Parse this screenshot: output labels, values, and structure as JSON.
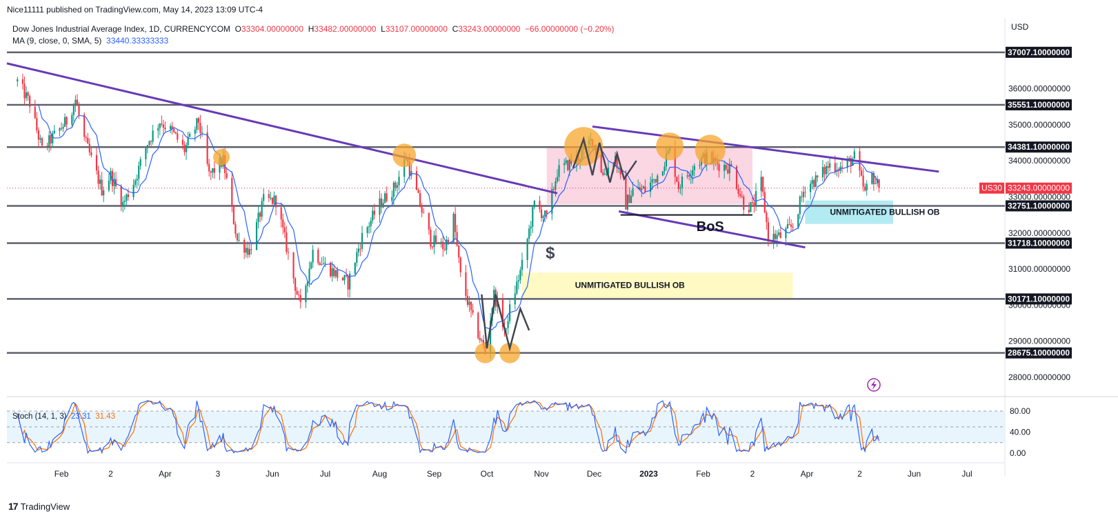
{
  "publisher_line": "Nice11111 published on TradingView.com, May 14, 2023 13:09 UTC-4",
  "legend": {
    "symbol": "Dow Jones Industrial Average Index, 1D, CURRENCYCOM",
    "o_label": "O",
    "o": "33304.00000000",
    "h_label": "H",
    "h": "33482.00000000",
    "l_label": "L",
    "l": "33107.00000000",
    "c_label": "C",
    "c": "33243.00000000",
    "change": "−66.00000000 (−0.20%)",
    "ma_label": "MA (9, close, 0, SMA, 5)",
    "ma_value": "33440.33333333"
  },
  "stoch_legend": {
    "label": "Stoch (14, 1, 3)",
    "k": "23.31",
    "d": "31.43"
  },
  "currency": "USD",
  "footer": "TradingView",
  "colors": {
    "up": "#089981",
    "down": "#f23645",
    "ma": "#2962ff",
    "trendline": "#673ab7",
    "level": "#5d606b",
    "circle": "#f7a52c"
  },
  "chart_data": [
    {
      "type": "candlestick",
      "title": "",
      "ylim": [
        27400,
        37500
      ],
      "y_ticks": [
        "36000.00000000",
        "35000.00000000",
        "34000.00000000",
        "33000.00000000",
        "32000.00000000",
        "31000.00000000",
        "30000.00000000",
        "29000.00000000",
        "28000.00000000"
      ],
      "y_tick_values": [
        36000,
        35000,
        34000,
        33000,
        32000,
        31000,
        30000,
        29000,
        28000
      ],
      "x_ticks": [
        "Feb",
        "2",
        "Apr",
        "3",
        "Jun",
        "Jul",
        "Aug",
        "Sep",
        "Oct",
        "Nov",
        "Dec",
        "2023",
        "Feb",
        "2",
        "Apr",
        "2",
        "Jun",
        "Jul"
      ],
      "x_tick_dates": [
        "2022-02-01",
        "2022-03-01",
        "2022-04-01",
        "2022-05-01",
        "2022-06-01",
        "2022-07-01",
        "2022-08-01",
        "2022-09-01",
        "2022-10-01",
        "2022-11-01",
        "2022-12-01",
        "2023-01-01",
        "2023-02-01",
        "2023-03-01",
        "2023-04-01",
        "2023-05-01",
        "2023-06-01",
        "2023-07-01"
      ],
      "price_path": [
        [
          "2022-01-07",
          36200
        ],
        [
          "2022-01-14",
          35600
        ],
        [
          "2022-01-21",
          34300
        ],
        [
          "2022-01-28",
          34700
        ],
        [
          "2022-02-04",
          35100
        ],
        [
          "2022-02-09",
          35700
        ],
        [
          "2022-02-14",
          34600
        ],
        [
          "2022-02-24",
          33200
        ],
        [
          "2022-03-01",
          33600
        ],
        [
          "2022-03-08",
          32800
        ],
        [
          "2022-03-15",
          33500
        ],
        [
          "2022-03-22",
          34500
        ],
        [
          "2022-03-29",
          35100
        ],
        [
          "2022-04-05",
          34800
        ],
        [
          "2022-04-12",
          34300
        ],
        [
          "2022-04-20",
          35100
        ],
        [
          "2022-04-26",
          33600
        ],
        [
          "2022-05-04",
          34000
        ],
        [
          "2022-05-12",
          31800
        ],
        [
          "2022-05-19",
          31500
        ],
        [
          "2022-05-27",
          32900
        ],
        [
          "2022-06-03",
          32900
        ],
        [
          "2022-06-10",
          31400
        ],
        [
          "2022-06-17",
          29900
        ],
        [
          "2022-06-24",
          31500
        ],
        [
          "2022-07-01",
          31100
        ],
        [
          "2022-07-14",
          30600
        ],
        [
          "2022-07-22",
          31900
        ],
        [
          "2022-08-01",
          32800
        ],
        [
          "2022-08-10",
          33300
        ],
        [
          "2022-08-16",
          34100
        ],
        [
          "2022-08-22",
          33100
        ],
        [
          "2022-08-30",
          31800
        ],
        [
          "2022-09-07",
          31600
        ],
        [
          "2022-09-12",
          32400
        ],
        [
          "2022-09-16",
          30800
        ],
        [
          "2022-09-23",
          29600
        ],
        [
          "2022-09-30",
          28700
        ],
        [
          "2022-10-05",
          30300
        ],
        [
          "2022-10-12",
          29200
        ],
        [
          "2022-10-13",
          29700
        ],
        [
          "2022-10-21",
          31100
        ],
        [
          "2022-10-28",
          32800
        ],
        [
          "2022-11-04",
          32400
        ],
        [
          "2022-11-10",
          33700
        ],
        [
          "2022-11-22",
          34100
        ],
        [
          "2022-11-30",
          34600
        ],
        [
          "2022-12-06",
          33600
        ],
        [
          "2022-12-13",
          34100
        ],
        [
          "2022-12-19",
          32800
        ],
        [
          "2022-12-23",
          33200
        ],
        [
          "2022-12-30",
          33200
        ],
        [
          "2023-01-06",
          33600
        ],
        [
          "2023-01-13",
          34300
        ],
        [
          "2023-01-18",
          33300
        ],
        [
          "2023-01-27",
          33900
        ],
        [
          "2023-02-02",
          34100
        ],
        [
          "2023-02-10",
          33900
        ],
        [
          "2023-02-17",
          33800
        ],
        [
          "2023-02-24",
          32800
        ],
        [
          "2023-03-01",
          32700
        ],
        [
          "2023-03-06",
          33400
        ],
        [
          "2023-03-10",
          31900
        ],
        [
          "2023-03-17",
          31900
        ],
        [
          "2023-03-24",
          32200
        ],
        [
          "2023-03-31",
          33300
        ],
        [
          "2023-04-07",
          33500
        ],
        [
          "2023-04-14",
          33900
        ],
        [
          "2023-04-21",
          33800
        ],
        [
          "2023-04-28",
          34100
        ],
        [
          "2023-05-04",
          33100
        ],
        [
          "2023-05-08",
          33600
        ],
        [
          "2023-05-12",
          33243
        ]
      ],
      "ma_series_name": "MA (9, close, 0, SMA, 5)",
      "horizontal_levels": [
        37007.1,
        35551.1,
        34381.1,
        32751.1,
        31718.1,
        30171.1,
        28675.1
      ],
      "level_labels": [
        "37007.10000000",
        "35551.10000000",
        "34381.10000000",
        "32751.10000000",
        "31718.10000000",
        "30171.10000000",
        "28675.10000000"
      ],
      "current_price": 33243,
      "current_label": "33243.00000000",
      "current_symbol": "US30",
      "trendlines": [
        {
          "from": [
            "2022-01-01",
            36700
          ],
          "to": [
            "2022-11-10",
            33100
          ],
          "to_label": ""
        },
        {
          "from": [
            "2022-11-30",
            34950
          ],
          "to": [
            "2023-06-15",
            33700
          ]
        },
        {
          "from": [
            "2022-12-15",
            32600
          ],
          "to": [
            "2023-03-31",
            31600
          ]
        }
      ],
      "bos_line": {
        "from": [
          "2022-12-16",
          32500
        ],
        "to": [
          "2023-03-01",
          32500
        ]
      },
      "zones": [
        {
          "label": "",
          "from": [
            "2022-11-04",
            34381
          ],
          "to": [
            "2023-03-01",
            32800
          ],
          "color": "#f8bbd0"
        },
        {
          "label": "UNMITIGATED BULLISH OB",
          "from": [
            "2022-10-21",
            30900
          ],
          "to": [
            "2023-03-24",
            30200
          ],
          "color": "#fff59d"
        },
        {
          "label": "UNMITIGATED BULLISH OB",
          "from": [
            "2023-03-31",
            32900
          ],
          "to": [
            "2023-05-20",
            32250
          ],
          "color": "#80deea"
        }
      ],
      "circles": [
        {
          "date": "2022-05-03",
          "price": 34100
        },
        {
          "date": "2022-08-15",
          "price": 34150
        },
        {
          "date": "2022-11-25",
          "price": 34400
        },
        {
          "date": "2023-01-13",
          "price": 34400
        },
        {
          "date": "2023-02-05",
          "price": 34300
        },
        {
          "date": "2022-09-30",
          "price": 28675
        },
        {
          "date": "2022-10-14",
          "price": 28675
        }
      ],
      "annotations": [
        {
          "text": "BoS",
          "date": "2023-02-05",
          "price": 32050
        },
        {
          "text": "$",
          "date": "2022-11-06",
          "price": 31300
        }
      ]
    },
    {
      "type": "line",
      "title": "",
      "series": [
        {
          "name": "%K",
          "color": "#2962ff"
        },
        {
          "name": "%D",
          "color": "#ff6d00"
        }
      ],
      "ylim": [
        -5,
        105
      ],
      "y_ticks": [
        "80.00",
        "40.00",
        "0.00"
      ],
      "y_tick_values": [
        80,
        40,
        0
      ],
      "band": [
        20,
        80
      ],
      "last_k": 23.31,
      "last_d": 31.43
    }
  ]
}
